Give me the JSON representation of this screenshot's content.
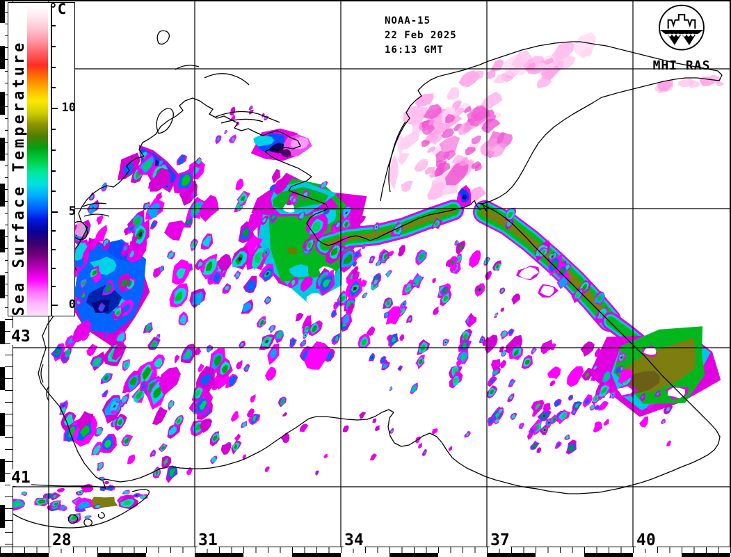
{
  "header": {
    "satellite": "NOAA-15",
    "date": "22 Feb 2025",
    "time": "16:13 GMT"
  },
  "logo": {
    "label": "MHI RAS"
  },
  "colorbar": {
    "unit": "°C",
    "title": "Sea Surface Temperature",
    "tick_labels": [
      "10",
      "5",
      "0"
    ],
    "tick_values": [
      10,
      5,
      0
    ],
    "palette_top_to_bottom": [
      "#ffffff",
      "#ffe6ee",
      "#ffc2d0",
      "#ff94a2",
      "#ff5f62",
      "#ff2d24",
      "#ff7300",
      "#ffb300",
      "#ffe800",
      "#cfd000",
      "#8d9400",
      "#4f7d00",
      "#00a316",
      "#00cf44",
      "#00e89c",
      "#00e2e2",
      "#00aaff",
      "#0063ff",
      "#0018e0",
      "#0b0096",
      "#3a006e",
      "#75007d",
      "#b800b8",
      "#ff00ff",
      "#ff6cff",
      "#ffb5ff",
      "#ffdcff"
    ]
  },
  "map": {
    "lon_labels": [
      "28",
      "31",
      "34",
      "37",
      "40"
    ],
    "lat_labels": [
      "43",
      "41"
    ],
    "status_colors": {
      "cold_fringe_magenta": "#ff00ff",
      "cool_cyan": "#00d2e8",
      "mild_green": "#00c020",
      "warm_olive": "#7d7d10",
      "ice_pink": "#ffabe9"
    }
  }
}
